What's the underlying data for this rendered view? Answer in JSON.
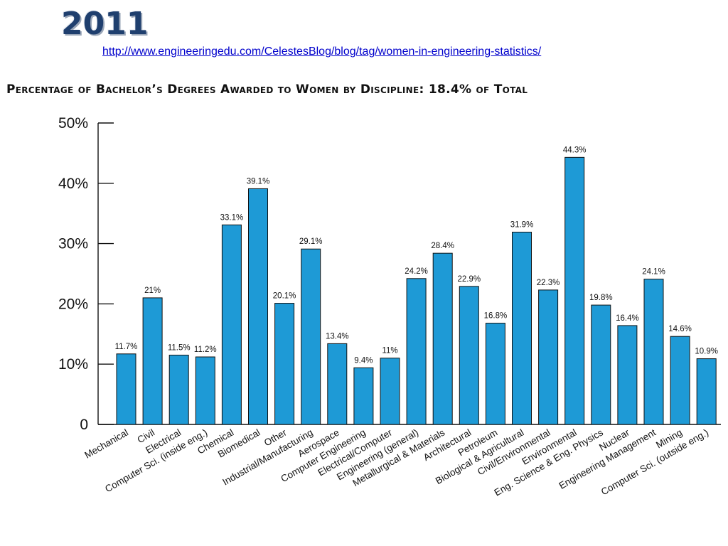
{
  "header": {
    "year": "2011",
    "source_url": "http://www.engineeringedu.com/CelestesBlog/blog/tag/women-in-engineering-statistics/"
  },
  "chart_data": {
    "type": "bar",
    "title": "Percentage of Bachelor’s Degrees Awarded to Women by Discipline: 18.4% of Total",
    "xlabel": "",
    "ylabel": "",
    "ylim": [
      0,
      50
    ],
    "yticks": [
      "0",
      "10%",
      "20%",
      "30%",
      "40%",
      "50%"
    ],
    "grid": false,
    "categories": [
      "Mechanical",
      "Civil",
      "Electrical",
      "Computer Sci. (inside eng.)",
      "Chemical",
      "Biomedical",
      "Other",
      "Industrial/Manufacturing",
      "Aerospace",
      "Computer Engineering",
      "Electrical/Computer",
      "Engineering (general)",
      "Metallurgical & Materials",
      "Architectural",
      "Petroleum",
      "Biological & Agricultural",
      "Civil/Environmental",
      "Environmental",
      "Eng. Science & Eng. Physics",
      "Nuclear",
      "Engineering Management",
      "Mining",
      "Computer Sci. (outside eng.)"
    ],
    "values": [
      11.7,
      21,
      11.5,
      11.2,
      33.1,
      39.1,
      20.1,
      29.1,
      13.4,
      9.4,
      11,
      24.2,
      28.4,
      22.9,
      16.8,
      31.9,
      22.3,
      44.3,
      19.8,
      16.4,
      24.1,
      14.6,
      10.9
    ],
    "data_labels": [
      "11.7%",
      "21%",
      "11.5%",
      "11.2%",
      "33.1%",
      "39.1%",
      "20.1%",
      "29.1%",
      "13.4%",
      "9.4%",
      "11%",
      "24.2%",
      "28.4%",
      "22.9%",
      "16.8%",
      "31.9%",
      "22.3%",
      "44.3%",
      "19.8%",
      "16.4%",
      "24.1%",
      "14.6%",
      "10.9%"
    ],
    "bar_color": "#1e9ad6"
  }
}
